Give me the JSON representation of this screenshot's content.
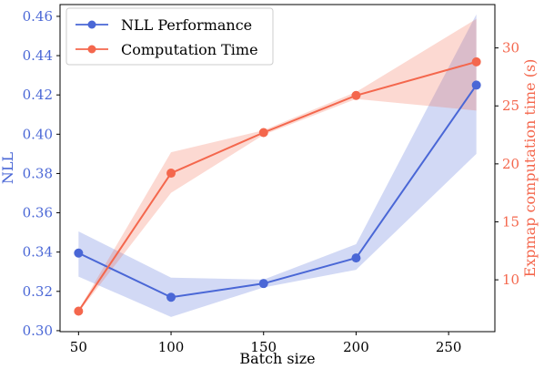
{
  "chart_data": {
    "type": "line",
    "xlabel": "Batch size",
    "ylabel_left": "NLL",
    "ylabel_right": "Expmap computation time (s)",
    "x_ticks": [
      50,
      100,
      150,
      200,
      250
    ],
    "xlim": [
      40,
      275
    ],
    "y_left_ticks": [
      "0.30",
      "0.32",
      "0.34",
      "0.36",
      "0.38",
      "0.40",
      "0.42",
      "0.44",
      "0.46"
    ],
    "ylim_left": [
      0.2995,
      0.466
    ],
    "y_right_ticks": [
      "10",
      "15",
      "20",
      "25",
      "30"
    ],
    "ylim_right": [
      5.53,
      33.74
    ],
    "legend_position": "top-left",
    "series": [
      {
        "name": "NLL Performance",
        "axis": "left",
        "color": "#4a67d6",
        "band_color": "#c8d0f3",
        "x": [
          50,
          100,
          150,
          200,
          265
        ],
        "values": [
          0.3395,
          0.317,
          0.324,
          0.337,
          0.425
        ],
        "lower": [
          0.3275,
          0.307,
          0.322,
          0.331,
          0.39
        ],
        "upper": [
          0.3505,
          0.327,
          0.326,
          0.344,
          0.461
        ]
      },
      {
        "name": "Computation Time",
        "axis": "right",
        "color": "#f4674d",
        "band_color": "#fbd3cb",
        "x": [
          50,
          100,
          150,
          200,
          265
        ],
        "values": [
          7.3,
          19.2,
          22.7,
          25.9,
          28.8
        ],
        "lower": [
          7.2,
          17.5,
          22.5,
          25.6,
          24.6
        ],
        "upper": [
          7.4,
          21.0,
          22.9,
          26.2,
          32.5
        ]
      }
    ]
  }
}
